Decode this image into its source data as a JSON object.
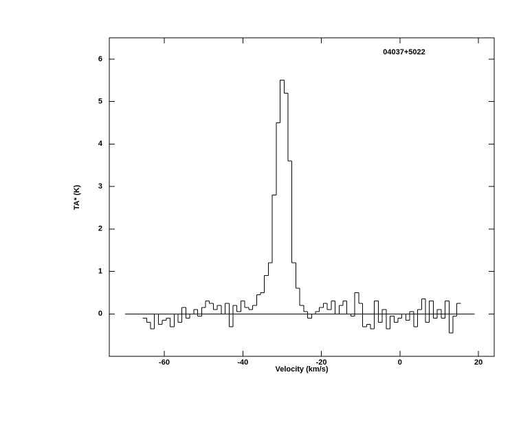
{
  "chart_data": {
    "type": "step",
    "title": "04037+5022",
    "x_label": "Velocity (km/s)",
    "y_label": "TA* (K)",
    "xlim": [
      -74,
      24
    ],
    "ylim": [
      -1,
      6.5
    ],
    "xticks": [
      -60,
      -40,
      -20,
      0,
      20
    ],
    "yticks": [
      0,
      1,
      2,
      3,
      4,
      5,
      6
    ],
    "baseline": {
      "value": 0,
      "x": [
        -70,
        19
      ]
    },
    "color": "#000000",
    "x": [
      -65,
      -64,
      -63,
      -62,
      -61,
      -60,
      -59,
      -58,
      -57,
      -56,
      -55,
      -54,
      -53,
      -52,
      -51,
      -50,
      -49,
      -48,
      -47,
      -46,
      -45,
      -44,
      -43,
      -42,
      -41,
      -40,
      -39,
      -38,
      -37,
      -36,
      -35,
      -34,
      -33,
      -32,
      -31,
      -30,
      -29,
      -28,
      -27,
      -26,
      -25,
      -24,
      -23,
      -22,
      -21,
      -20,
      -19,
      -18,
      -17,
      -16,
      -15,
      -14,
      -13,
      -12,
      -11,
      -10,
      -9,
      -8,
      -7,
      -6,
      -5,
      -4,
      -3,
      -2,
      -1,
      0,
      1,
      2,
      3,
      4,
      5,
      6,
      7,
      8,
      9,
      10,
      11,
      12,
      13,
      14,
      15
    ],
    "values": [
      -0.1,
      -0.2,
      -0.35,
      0.0,
      -0.25,
      -0.15,
      -0.1,
      -0.3,
      0.0,
      -0.2,
      0.15,
      -0.1,
      0.0,
      0.1,
      -0.05,
      0.15,
      0.3,
      0.25,
      0.1,
      0.2,
      0.0,
      0.25,
      -0.3,
      0.2,
      0.05,
      0.3,
      0.15,
      0.1,
      0.2,
      0.45,
      0.5,
      0.9,
      1.2,
      2.8,
      4.5,
      5.5,
      5.2,
      3.6,
      1.2,
      0.6,
      0.2,
      0.05,
      -0.1,
      0.0,
      0.05,
      0.15,
      0.25,
      0.1,
      0.3,
      0.0,
      0.2,
      0.3,
      0.0,
      -0.05,
      0.5,
      0.25,
      -0.3,
      -0.25,
      -0.35,
      0.3,
      -0.2,
      0.1,
      -0.35,
      -0.05,
      -0.2,
      -0.1,
      0.0,
      -0.15,
      0.05,
      -0.3,
      0.1,
      0.35,
      -0.2,
      0.3,
      -0.1,
      0.1,
      -0.1,
      0.3,
      -0.45,
      -0.05,
      0.25
    ]
  }
}
